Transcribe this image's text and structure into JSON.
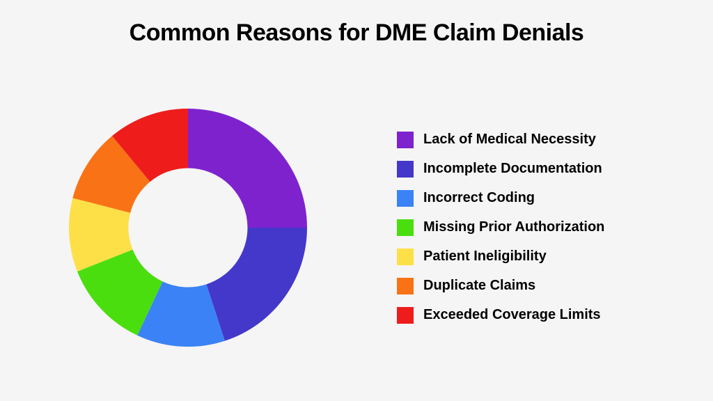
{
  "title": "Common Reasons for DME Claim Denials",
  "background_color": "#f5f5f5",
  "title_color": "#000000",
  "title_fontsize": 34,
  "title_fontweight": 800,
  "chart": {
    "type": "donut",
    "outer_radius": 180,
    "inner_radius": 90,
    "start_angle_deg": 0,
    "segments": [
      {
        "label": "Lack of Medical Necessity",
        "value": 25,
        "color": "#7e22ce"
      },
      {
        "label": "Incomplete Documentation",
        "value": 20,
        "color": "#4338ca"
      },
      {
        "label": "Incorrect Coding",
        "value": 12,
        "color": "#3b82f6"
      },
      {
        "label": "Missing Prior Authorization",
        "value": 12,
        "color": "#4ade0f"
      },
      {
        "label": "Patient Ineligibility",
        "value": 10,
        "color": "#fde047"
      },
      {
        "label": "Duplicate Claims",
        "value": 10,
        "color": "#f97316"
      },
      {
        "label": "Exceeded Coverage Limits",
        "value": 11,
        "color": "#ef1c1c"
      }
    ]
  },
  "legend": {
    "swatch_size": 24,
    "label_fontsize": 20,
    "label_fontweight": 700,
    "label_color": "#000000",
    "gap": 18
  }
}
